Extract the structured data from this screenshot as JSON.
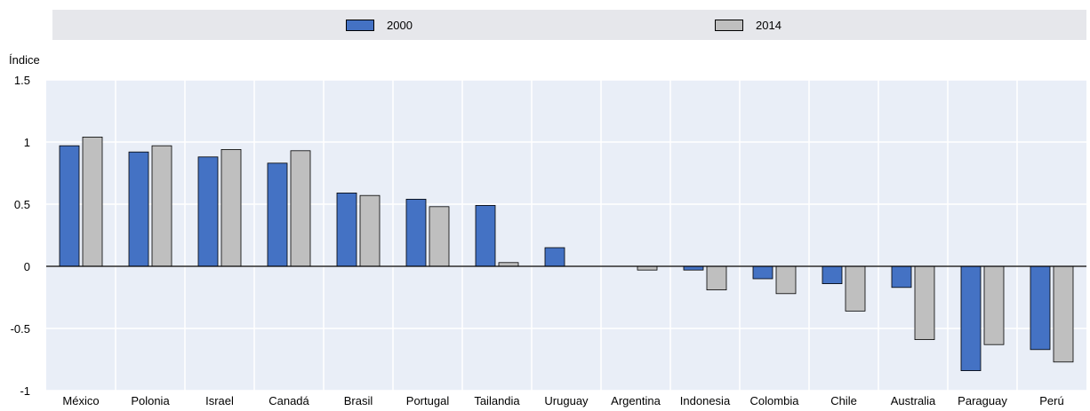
{
  "chart_data": {
    "type": "bar",
    "ylabel": "Índice",
    "ylim": [
      -1,
      1.5
    ],
    "yticks": [
      "1.5",
      "1",
      "0.5",
      "0",
      "-0.5",
      "-1"
    ],
    "ytick_values": [
      1.5,
      1,
      0.5,
      0,
      -0.5,
      -1
    ],
    "categories": [
      "México",
      "Polonia",
      "Israel",
      "Canadá",
      "Brasil",
      "Portugal",
      "Tailandia",
      "Uruguay",
      "Argentina",
      "Indonesia",
      "Colombia",
      "Chile",
      "Australia",
      "Paraguay",
      "Perú"
    ],
    "series": [
      {
        "name": "2000",
        "color": "#4472c4",
        "values": [
          0.97,
          0.92,
          0.88,
          0.83,
          0.59,
          0.54,
          0.49,
          0.15,
          null,
          -0.03,
          -0.1,
          -0.14,
          -0.17,
          -0.84,
          -0.67
        ]
      },
      {
        "name": "2014",
        "color": "#bfbfbf",
        "values": [
          1.04,
          0.97,
          0.94,
          0.93,
          0.57,
          0.48,
          0.03,
          null,
          -0.03,
          -0.19,
          -0.22,
          -0.36,
          -0.59,
          -0.63,
          -0.77
        ]
      }
    ],
    "grid": true,
    "legend": "top"
  }
}
